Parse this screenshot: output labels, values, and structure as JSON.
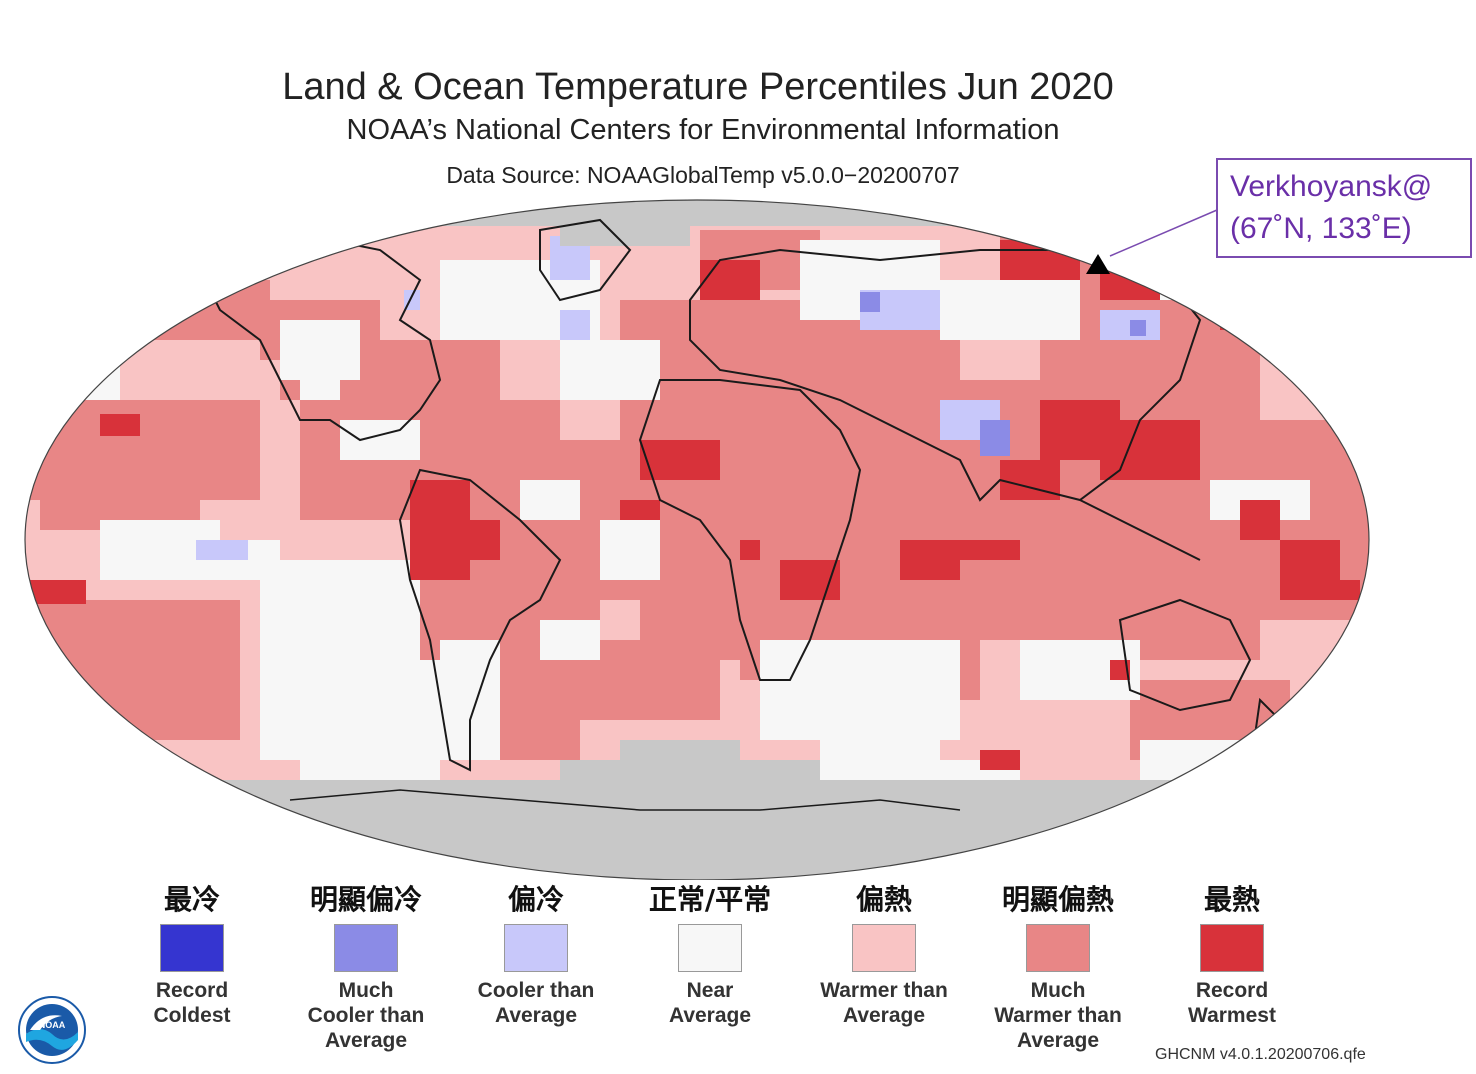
{
  "header": {
    "title": "Land & Ocean Temperature Percentiles Jun 2020",
    "subtitle": "NOAA’s National Centers for Environmental Information",
    "source": "Data Source: NOAAGlobalTemp v5.0.0−20200707"
  },
  "callout": {
    "line1": "Verkhoyansk@",
    "line2": "(67˚N, 133˚E)"
  },
  "colors": {
    "record_coldest": "#3535d0",
    "much_cooler": "#8b8be6",
    "cooler": "#c8c8fa",
    "near": "#f7f7f7",
    "warmer": "#f9c4c4",
    "much_warmer": "#e88686",
    "record_warmest": "#d8323a",
    "missing": "#c8c8c8",
    "callout": "#7a4bb0"
  },
  "legend": [
    {
      "zh": "最冷",
      "en": "Record\nColdest",
      "color": "#3535d0"
    },
    {
      "zh": "明顯偏冷",
      "en": "Much\nCooler than\nAverage",
      "color": "#8b8be6"
    },
    {
      "zh": "偏冷",
      "en": "Cooler than\nAverage",
      "color": "#c8c8fa"
    },
    {
      "zh": "正常/平常",
      "en": "Near\nAverage",
      "color": "#f7f7f7"
    },
    {
      "zh": "偏熱",
      "en": "Warmer than\nAverage",
      "color": "#f9c4c4"
    },
    {
      "zh": "明顯偏熱",
      "en": "Much\nWarmer than\nAverage",
      "color": "#e88686"
    },
    {
      "zh": "最熱",
      "en": "Record\nWarmest",
      "color": "#d8323a"
    }
  ],
  "footer": "GHCNM v4.0.1.20200706.qfe",
  "logo": {
    "text": "NOAA",
    "icon": "noaa-logo-icon"
  }
}
